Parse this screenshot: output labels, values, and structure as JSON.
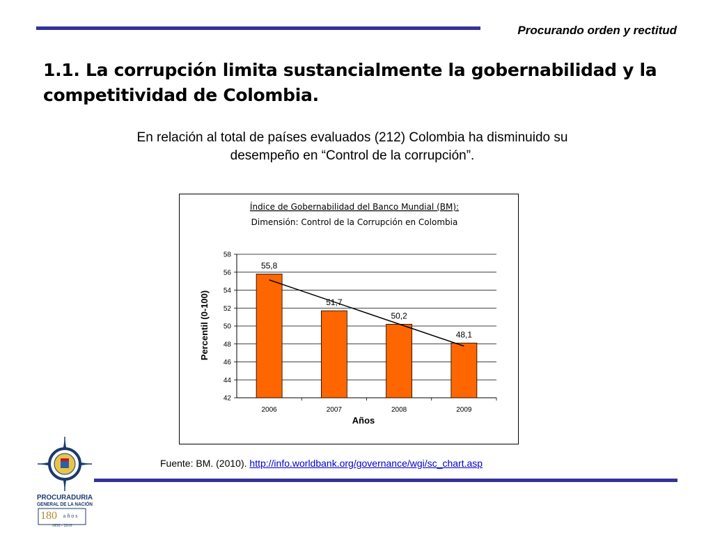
{
  "header": {
    "motto": "Procurando orden y rectitud"
  },
  "slide": {
    "title": "1.1. La corrupción limita sustancialmente la gobernabilidad y la competitividad de Colombia.",
    "intro": "En relación al total de países evaluados (212) Colombia ha disminuido su desempeño en “Control de la corrupción”."
  },
  "chart_data": {
    "type": "bar",
    "title": "Índice de Gobernabilidad del Banco Mundial (BM):",
    "subtitle": "Dimensión: Control de la Corrupción en Colombia",
    "categories": [
      "2006",
      "2007",
      "2008",
      "2009"
    ],
    "values": [
      55.8,
      51.7,
      50.2,
      48.1
    ],
    "data_labels": [
      "55,8",
      "51,7",
      "50,2",
      "48,1"
    ],
    "xlabel": "Años",
    "ylabel": "Percentil (0-100)",
    "ylim": [
      42,
      58
    ],
    "yticks": [
      42,
      44,
      46,
      48,
      50,
      52,
      54,
      56,
      58
    ],
    "grid": true,
    "trendline": true,
    "bar_color": "#ff6600",
    "bar_edge_color": "#000000"
  },
  "footer": {
    "source_prefix": "Fuente: BM. (2010). ",
    "source_link": "http://info.worldbank.org/governance/wgi/sc_chart.asp"
  },
  "logo": {
    "icon": "procuraduria-shield-icon",
    "line1": "PROCURADURIA",
    "line2": "GENERAL DE LA NACIÓN",
    "anniversary": "180",
    "anniversary_word": "años",
    "years": "1830 - 2010"
  },
  "colors": {
    "accent_rule": "#333399",
    "link": "#0000cc"
  }
}
